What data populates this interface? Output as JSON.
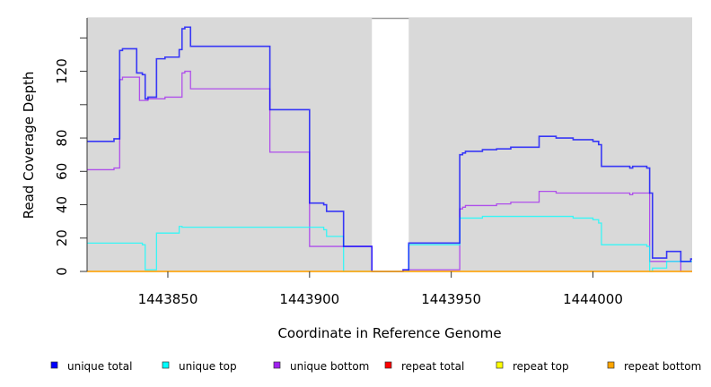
{
  "chart_data": {
    "type": "line",
    "step": true,
    "title": "",
    "xlabel": "Coordinate in Reference Genome",
    "ylabel": "Read Coverage Depth",
    "xlim": [
      1443821.5,
      1444035
    ],
    "ylim": [
      0,
      152
    ],
    "x_ticks": [
      1443850,
      1443900,
      1443950,
      1444000
    ],
    "x_tick_labels": [
      "1443850",
      "1443900",
      "1443950",
      "1444000"
    ],
    "y_ticks": [
      0,
      20,
      40,
      60,
      80,
      100,
      120,
      140
    ],
    "y_tick_labels": [
      "0",
      "20",
      "40",
      "60",
      "80",
      "",
      "120",
      ""
    ],
    "shaded_regions": [
      [
        1443821.5,
        1443922
      ],
      [
        1443935,
        1444035
      ]
    ],
    "shade_color": "#d9d9d9",
    "legend_position": "bottom",
    "series": [
      {
        "name": "unique total",
        "color": "#0000ff",
        "steps": [
          [
            1443821.5,
            78
          ],
          [
            1443831,
            79.5
          ],
          [
            1443833,
            132.5
          ],
          [
            1443834,
            133.5
          ],
          [
            1443839,
            119
          ],
          [
            1443841,
            118
          ],
          [
            1443842,
            103.5
          ],
          [
            1443843,
            104.5
          ],
          [
            1443846,
            127.5
          ],
          [
            1443849,
            128.5
          ],
          [
            1443854,
            133
          ],
          [
            1443855,
            145.5
          ],
          [
            1443856,
            146.5
          ],
          [
            1443858,
            135
          ],
          [
            1443886,
            97
          ],
          [
            1443900,
            41
          ],
          [
            1443905,
            40
          ],
          [
            1443906,
            36
          ],
          [
            1443912,
            15
          ],
          [
            1443922,
            0
          ],
          [
            1443933,
            1
          ],
          [
            1443935,
            17
          ],
          [
            1443953,
            70
          ],
          [
            1443954,
            71
          ],
          [
            1443955,
            72
          ],
          [
            1443961,
            73
          ],
          [
            1443966,
            73.5
          ],
          [
            1443971,
            74.5
          ],
          [
            1443981,
            81
          ],
          [
            1443987,
            80
          ],
          [
            1443993,
            79
          ],
          [
            1444000,
            78
          ],
          [
            1444002,
            76
          ],
          [
            1444003,
            63
          ],
          [
            1444013,
            62
          ],
          [
            1444014,
            63
          ],
          [
            1444019,
            62
          ],
          [
            1444020,
            47
          ],
          [
            1444021,
            8
          ],
          [
            1444026,
            12
          ],
          [
            1444031,
            6
          ],
          [
            1444034.5,
            7.5
          ]
        ]
      },
      {
        "name": "unique top",
        "color": "#00ffff",
        "steps": [
          [
            1443821.5,
            17
          ],
          [
            1443841,
            16
          ],
          [
            1443842,
            1
          ],
          [
            1443846,
            23
          ],
          [
            1443854,
            27
          ],
          [
            1443855,
            26.5
          ],
          [
            1443905,
            25
          ],
          [
            1443906,
            21
          ],
          [
            1443912,
            0
          ],
          [
            1443935,
            16
          ],
          [
            1443953,
            32
          ],
          [
            1443961,
            33
          ],
          [
            1443993,
            32
          ],
          [
            1444000,
            31
          ],
          [
            1444002,
            29
          ],
          [
            1444003,
            16
          ],
          [
            1444019,
            15
          ],
          [
            1444020,
            0
          ],
          [
            1444021,
            2
          ],
          [
            1444026,
            6
          ]
        ]
      },
      {
        "name": "unique bottom",
        "color": "#a020f0",
        "steps": [
          [
            1443821.5,
            61
          ],
          [
            1443831,
            62
          ],
          [
            1443833,
            115
          ],
          [
            1443834,
            116.5
          ],
          [
            1443840,
            102.5
          ],
          [
            1443843,
            103.5
          ],
          [
            1443849,
            104.5
          ],
          [
            1443855,
            119
          ],
          [
            1443856,
            120
          ],
          [
            1443858,
            109.5
          ],
          [
            1443886,
            71.5
          ],
          [
            1443900,
            15
          ],
          [
            1443922,
            0
          ],
          [
            1443933,
            1
          ],
          [
            1443953,
            37.5
          ],
          [
            1443954,
            38.5
          ],
          [
            1443955,
            39.5
          ],
          [
            1443966,
            40.5
          ],
          [
            1443971,
            41.5
          ],
          [
            1443981,
            48
          ],
          [
            1443987,
            47
          ],
          [
            1444013,
            46
          ],
          [
            1444014,
            47
          ],
          [
            1444020,
            6
          ],
          [
            1444031,
            0
          ]
        ]
      },
      {
        "name": "repeat total",
        "color": "#ff0000",
        "steps": [
          [
            1443821.5,
            0
          ]
        ]
      },
      {
        "name": "repeat top",
        "color": "#ffff00",
        "steps": [
          [
            1443821.5,
            0
          ]
        ]
      },
      {
        "name": "repeat bottom",
        "color": "#ffa500",
        "steps": [
          [
            1443821.5,
            0
          ]
        ]
      }
    ]
  }
}
